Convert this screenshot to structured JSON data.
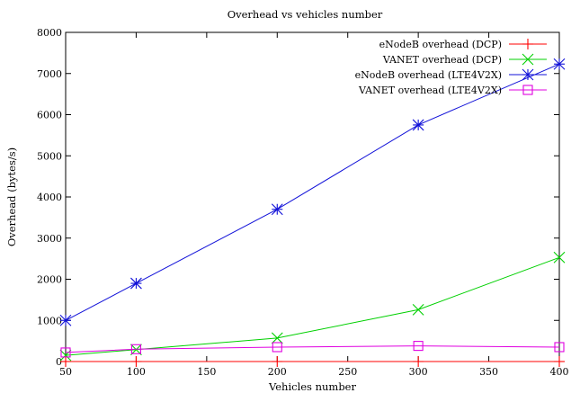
{
  "chart_data": {
    "type": "line",
    "title": "Overhead vs vehicles number",
    "xlabel": "Vehicles number",
    "ylabel": "Overhead (bytes/s)",
    "xlim": [
      50,
      400
    ],
    "ylim": [
      0,
      8000
    ],
    "xticks": [
      50,
      100,
      150,
      200,
      250,
      300,
      350,
      400
    ],
    "yticks": [
      0,
      1000,
      2000,
      3000,
      4000,
      5000,
      6000,
      7000,
      8000
    ],
    "grid": false,
    "legend": "top-right",
    "x": [
      50,
      100,
      200,
      300,
      400
    ],
    "series": [
      {
        "name": "eNodeB overhead (DCP)",
        "values": [
          0,
          0,
          0,
          0,
          0
        ],
        "color": "#ff0000",
        "marker": "plus"
      },
      {
        "name": "VANET overhead (DCP)",
        "values": [
          150,
          290,
          570,
          1260,
          2530
        ],
        "color": "#00d000",
        "marker": "cross"
      },
      {
        "name": "eNodeB overhead (LTE4V2X)",
        "values": [
          1000,
          1900,
          3700,
          5750,
          7230
        ],
        "color": "#1010d8",
        "marker": "star"
      },
      {
        "name": "VANET overhead (LTE4V2X)",
        "values": [
          220,
          300,
          350,
          380,
          350
        ],
        "color": "#e000e0",
        "marker": "square"
      }
    ]
  }
}
